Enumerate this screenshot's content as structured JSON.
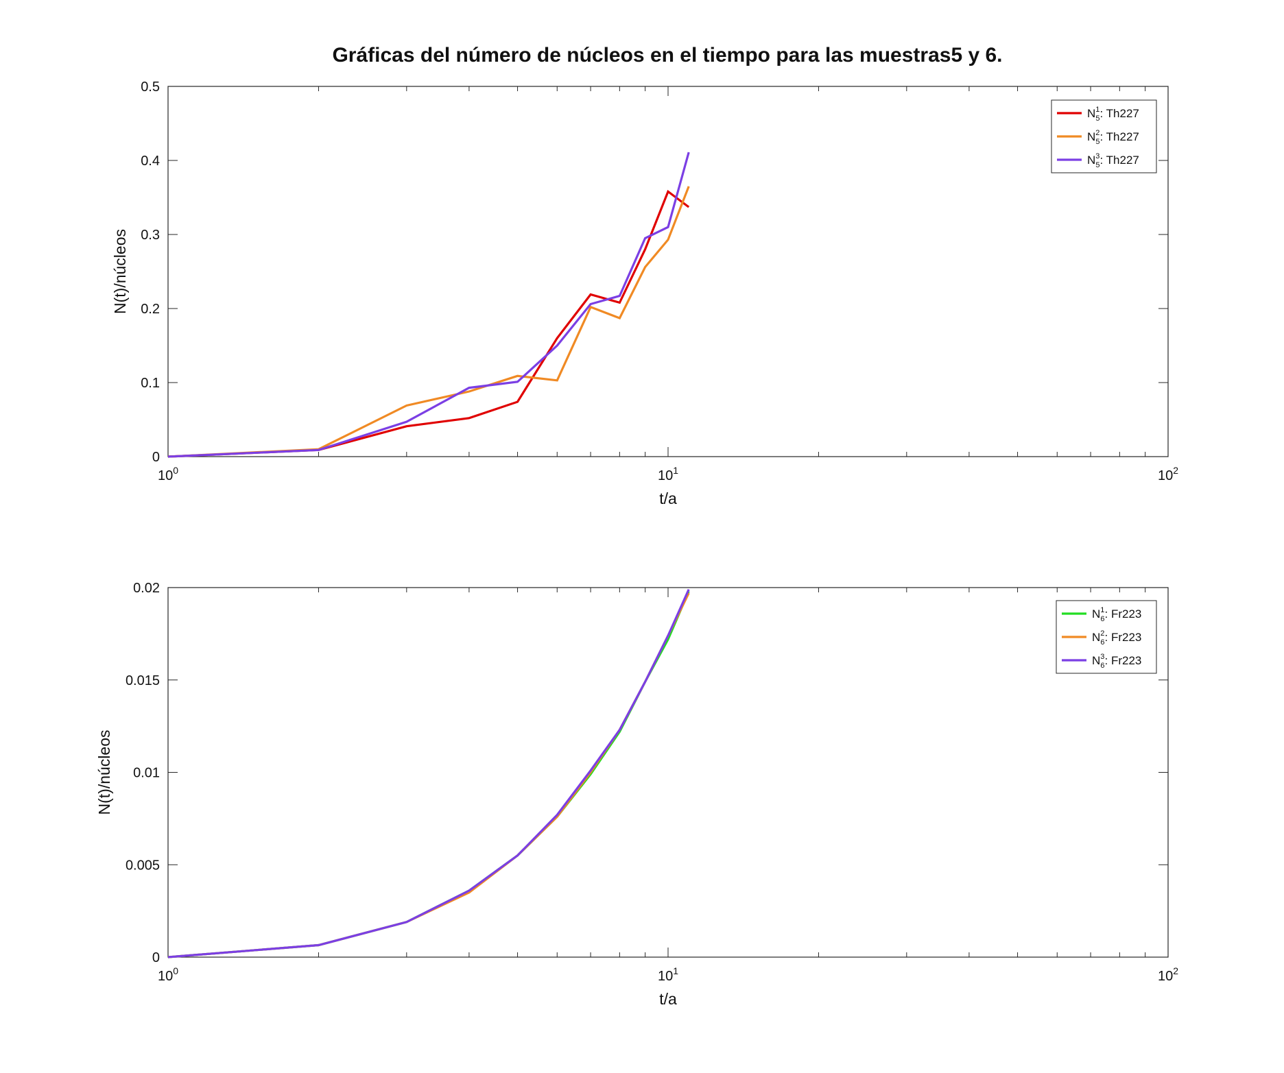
{
  "title": "Gráficas del número de núcleos en el tiempo para las muestras5 y 6.",
  "colors": {
    "red": "#e00000",
    "orange": "#f08a24",
    "purple": "#7b3fe4",
    "green": "#22dd22"
  },
  "chart_data": [
    {
      "type": "line",
      "xscale": "log",
      "xlabel": "t/a",
      "ylabel": "N(t)/núcleos",
      "xlim": [
        1,
        100
      ],
      "ylim": [
        0,
        0.5
      ],
      "xticks": [
        {
          "base": "10",
          "exp": "0",
          "value": 1
        },
        {
          "base": "10",
          "exp": "1",
          "value": 10
        },
        {
          "base": "10",
          "exp": "2",
          "value": 100
        }
      ],
      "yticks": [
        "0",
        "0.1",
        "0.2",
        "0.3",
        "0.4",
        "0.5"
      ],
      "legend_position": "top-right",
      "x": [
        1,
        2,
        3,
        4,
        5,
        6,
        7,
        8,
        9,
        10,
        11
      ],
      "series": [
        {
          "name_main": "N",
          "name_sup": "1",
          "name_sub": "5",
          "name_rest": ": Th227",
          "color": "#e00000",
          "values": [
            0,
            0.009,
            0.041,
            0.052,
            0.074,
            0.16,
            0.219,
            0.208,
            0.28,
            0.358,
            0.337
          ]
        },
        {
          "name_main": "N",
          "name_sup": "2",
          "name_sub": "5",
          "name_rest": ": Th227",
          "color": "#f08a24",
          "values": [
            0,
            0.01,
            0.069,
            0.088,
            0.109,
            0.103,
            0.202,
            0.187,
            0.256,
            0.293,
            0.365
          ]
        },
        {
          "name_main": "N",
          "name_sup": "3",
          "name_sub": "5",
          "name_rest": ": Th227",
          "color": "#7b3fe4",
          "values": [
            0,
            0.009,
            0.047,
            0.093,
            0.101,
            0.15,
            0.206,
            0.217,
            0.295,
            0.31,
            0.411
          ]
        }
      ]
    },
    {
      "type": "line",
      "xscale": "log",
      "xlabel": "t/a",
      "ylabel": "N(t)/núcleos",
      "xlim": [
        1,
        100
      ],
      "ylim": [
        0,
        0.02
      ],
      "xticks": [
        {
          "base": "10",
          "exp": "0",
          "value": 1
        },
        {
          "base": "10",
          "exp": "1",
          "value": 10
        },
        {
          "base": "10",
          "exp": "2",
          "value": 100
        }
      ],
      "yticks": [
        "0",
        "0.005",
        "0.01",
        "0.015",
        "0.02"
      ],
      "legend_position": "top-right",
      "x": [
        1,
        2,
        3,
        4,
        5,
        6,
        7,
        8,
        9,
        10,
        11
      ],
      "series": [
        {
          "name_main": "N",
          "name_sup": "1",
          "name_sub": "6",
          "name_rest": ": Fr223",
          "color": "#22dd22",
          "values": [
            0,
            0.00065,
            0.0019,
            0.0036,
            0.0055,
            0.0076,
            0.0099,
            0.0122,
            0.0149,
            0.0172,
            0.0198
          ]
        },
        {
          "name_main": "N",
          "name_sup": "2",
          "name_sub": "6",
          "name_rest": ": Fr223",
          "color": "#f08a24",
          "values": [
            0,
            0.00065,
            0.0019,
            0.0035,
            0.0055,
            0.0076,
            0.01,
            0.0123,
            0.0149,
            0.0174,
            0.0197
          ]
        },
        {
          "name_main": "N",
          "name_sup": "3",
          "name_sub": "6",
          "name_rest": ": Fr223",
          "color": "#7b3fe4",
          "values": [
            0,
            0.00065,
            0.0019,
            0.0036,
            0.0055,
            0.0077,
            0.0101,
            0.0123,
            0.0149,
            0.0174,
            0.0199
          ]
        }
      ]
    }
  ]
}
